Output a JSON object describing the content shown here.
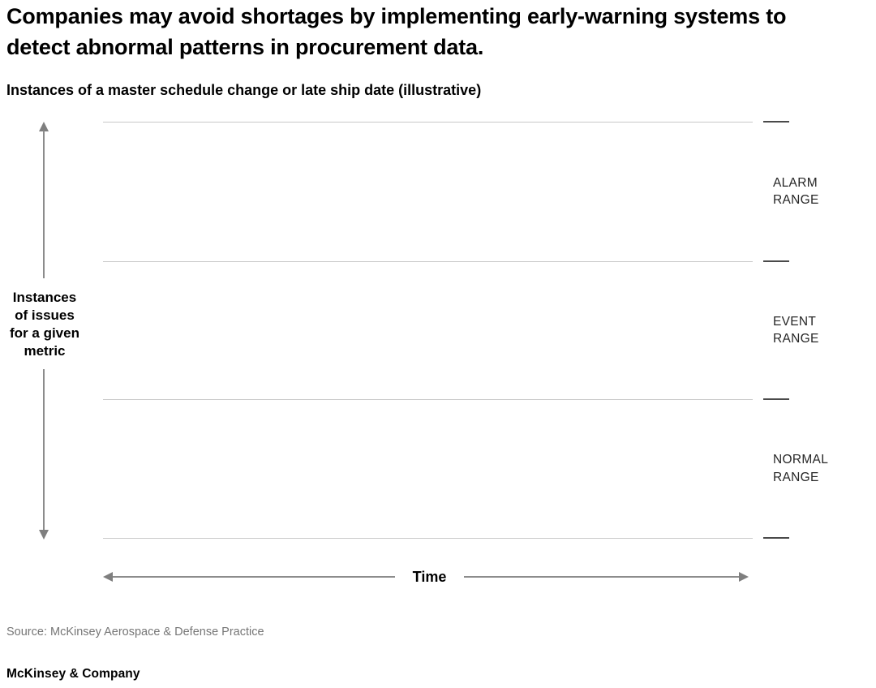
{
  "header": {
    "title": "Companies may avoid shortages by implementing early-warning systems to detect abnormal patterns in procurement data.",
    "subtitle": "Instances of a master schedule change or late ship date (illustrative)"
  },
  "chart": {
    "y_axis_label": "Instances\nof issues\nfor a given\nmetric",
    "x_axis_label": "Time",
    "ranges": [
      {
        "label": "ALARM\nRANGE"
      },
      {
        "label": "EVENT\nRANGE"
      },
      {
        "label": "NORMAL\nRANGE"
      }
    ]
  },
  "chart_data": {
    "type": "line",
    "title": "Instances of a master schedule change or late ship date (illustrative)",
    "xlabel": "Time",
    "ylabel": "Instances of issues for a given metric",
    "series": [],
    "bands": [
      {
        "label": "ALARM RANGE",
        "position": "top"
      },
      {
        "label": "EVENT RANGE",
        "position": "middle"
      },
      {
        "label": "NORMAL RANGE",
        "position": "bottom"
      }
    ],
    "notes": "Illustrative empty plot: no data points shown; three stacked horizontal ranges separated by light gray boundary lines with dark tick marks at right; double-headed arrows on both axes.",
    "axis_ticks": "none",
    "grid": "band boundary lines only",
    "legend": "none"
  },
  "footer": {
    "source": "Source: McKinsey Aerospace & Defense Practice",
    "logo": "McKinsey & Company"
  },
  "colors": {
    "background": "#ffffff",
    "title_text": "#000000",
    "band_boundary_line": "#c9c9c9",
    "right_tick": "#4a4a4a",
    "axis_arrow": "#7f7f7f",
    "range_label_text": "#262626",
    "source_text": "#767676"
  }
}
